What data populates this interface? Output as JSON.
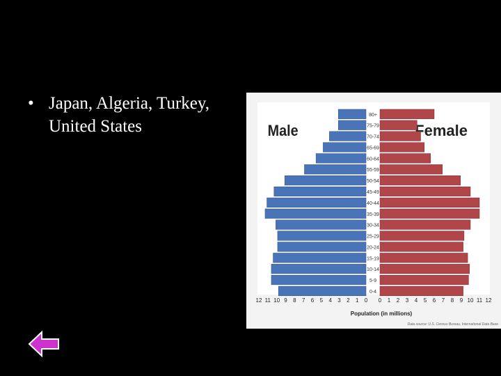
{
  "slide": {
    "bullet_text": "Japan, Algeria, Turkey, United States"
  },
  "nav": {
    "back_icon": "left-arrow-icon",
    "back_color": "#cc33cc"
  },
  "chart_data": {
    "type": "bar",
    "subtype": "population-pyramid",
    "title": "",
    "xlabel": "Population (in millions)",
    "ylabel": "",
    "left_label": "Male",
    "right_label": "Female",
    "colors": {
      "male": "#4a74b8",
      "female": "#b0454a"
    },
    "xlim": [
      0,
      12
    ],
    "x_ticks_male": [
      "12",
      "11",
      "10",
      "9",
      "8",
      "7",
      "6",
      "5",
      "4",
      "3",
      "2",
      "1",
      "0"
    ],
    "x_ticks_female": [
      "0",
      "1",
      "2",
      "3",
      "4",
      "5",
      "6",
      "7",
      "8",
      "9",
      "10",
      "11",
      "12"
    ],
    "categories": [
      "80+",
      "75-79",
      "70-74",
      "65-69",
      "60-64",
      "55-59",
      "50-54",
      "45-49",
      "40-44",
      "35-39",
      "30-34",
      "25-29",
      "20-24",
      "15-19",
      "10-14",
      "5-9",
      "0-4"
    ],
    "series": [
      {
        "name": "Male",
        "values": [
          3.1,
          3.1,
          4.1,
          4.8,
          5.6,
          6.9,
          9.1,
          10.3,
          11.1,
          11.3,
          10.1,
          9.9,
          9.9,
          10.4,
          10.6,
          10.6,
          9.8
        ]
      },
      {
        "name": "Female",
        "values": [
          6.0,
          4.1,
          4.5,
          4.9,
          5.6,
          6.9,
          8.9,
          10.0,
          11.0,
          11.0,
          10.0,
          9.3,
          9.2,
          9.7,
          9.9,
          9.8,
          9.2
        ]
      }
    ],
    "grid": false,
    "source": "Data source: U.S. Census Bureau, International Data Base"
  }
}
